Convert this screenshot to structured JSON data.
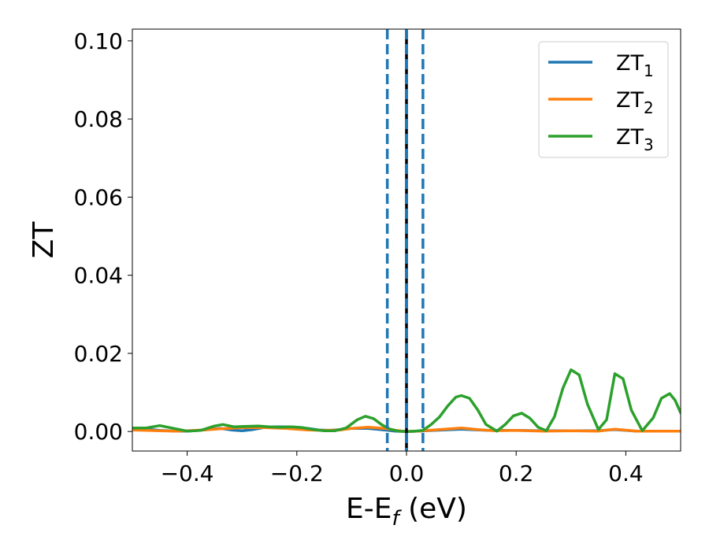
{
  "chart_data": {
    "type": "line",
    "xlabel": "E-E",
    "xlabel_subscript": "f",
    "xlabel_unit": " (eV)",
    "ylabel": "ZT",
    "xlim": [
      -0.5,
      0.5
    ],
    "ylim": [
      -0.005,
      0.103
    ],
    "x_ticks": [
      -0.4,
      -0.2,
      0.0,
      0.2,
      0.4
    ],
    "x_tick_labels": [
      "−0.4",
      "−0.2",
      "0.0",
      "0.2",
      "0.4"
    ],
    "y_ticks": [
      0.0,
      0.02,
      0.04,
      0.06,
      0.08,
      0.1
    ],
    "y_tick_labels": [
      "0.00",
      "0.02",
      "0.04",
      "0.06",
      "0.08",
      "0.10"
    ],
    "grid": false,
    "legend_position": "top-right",
    "vertical_lines": [
      {
        "x": -0.035,
        "style": "dashed",
        "color": "#1f77b4"
      },
      {
        "x": 0.0,
        "style": "solid",
        "color": "#000000"
      },
      {
        "x": 0.0,
        "style": "dashed",
        "color": "#1f77b4"
      },
      {
        "x": 0.03,
        "style": "dashed",
        "color": "#1f77b4"
      }
    ],
    "series": [
      {
        "name": "ZT",
        "name_subscript": "1",
        "color": "#1f77b4",
        "x": [
          -0.5,
          -0.45,
          -0.42,
          -0.4,
          -0.37,
          -0.34,
          -0.32,
          -0.3,
          -0.28,
          -0.26,
          -0.24,
          -0.22,
          -0.2,
          -0.18,
          -0.16,
          -0.14,
          -0.12,
          -0.1,
          -0.07,
          -0.04,
          -0.02,
          0.0,
          0.02,
          0.05,
          0.1,
          0.15,
          0.2,
          0.25,
          0.3,
          0.35,
          0.38,
          0.42,
          0.46,
          0.5
        ],
        "y": [
          0.0009,
          0.0003,
          0.0001,
          0.0001,
          0.0004,
          0.0008,
          0.0004,
          0.0002,
          0.0005,
          0.001,
          0.0012,
          0.0012,
          0.0011,
          0.0008,
          0.0004,
          0.0003,
          0.0005,
          0.0008,
          0.0008,
          0.0004,
          0.0001,
          0.0,
          0.0001,
          0.0003,
          0.0006,
          0.0003,
          0.0003,
          0.0002,
          0.0002,
          0.0002,
          0.0005,
          0.0001,
          0.0001,
          0.0001
        ]
      },
      {
        "name": "ZT",
        "name_subscript": "2",
        "color": "#ff7f0e",
        "x": [
          -0.5,
          -0.45,
          -0.42,
          -0.4,
          -0.37,
          -0.34,
          -0.3,
          -0.26,
          -0.22,
          -0.2,
          -0.18,
          -0.15,
          -0.12,
          -0.1,
          -0.07,
          -0.04,
          -0.02,
          0.0,
          0.02,
          0.05,
          0.08,
          0.1,
          0.13,
          0.16,
          0.2,
          0.25,
          0.3,
          0.35,
          0.38,
          0.42,
          0.46,
          0.5
        ],
        "y": [
          0.0004,
          0.0002,
          0.0001,
          0.0002,
          0.0004,
          0.0007,
          0.001,
          0.001,
          0.0008,
          0.0006,
          0.0004,
          0.0003,
          0.0004,
          0.0008,
          0.0011,
          0.0008,
          0.0003,
          0.0,
          0.0001,
          0.0004,
          0.0007,
          0.0009,
          0.0005,
          0.0002,
          0.0003,
          0.0001,
          0.0002,
          0.0001,
          0.0006,
          0.0001,
          0.0001,
          0.0001
        ]
      },
      {
        "name": "ZT",
        "name_subscript": "3",
        "color": "#2ca02c",
        "x": [
          -0.5,
          -0.475,
          -0.45,
          -0.425,
          -0.4,
          -0.375,
          -0.35,
          -0.335,
          -0.315,
          -0.295,
          -0.27,
          -0.25,
          -0.23,
          -0.21,
          -0.19,
          -0.17,
          -0.15,
          -0.13,
          -0.11,
          -0.09,
          -0.075,
          -0.06,
          -0.045,
          -0.03,
          -0.015,
          0.0,
          0.015,
          0.03,
          0.045,
          0.06,
          0.075,
          0.09,
          0.1,
          0.115,
          0.13,
          0.145,
          0.165,
          0.18,
          0.195,
          0.21,
          0.225,
          0.24,
          0.255,
          0.27,
          0.285,
          0.3,
          0.315,
          0.33,
          0.35,
          0.365,
          0.38,
          0.395,
          0.41,
          0.43,
          0.45,
          0.465,
          0.48,
          0.49,
          0.5
        ],
        "y": [
          0.0009,
          0.0009,
          0.0015,
          0.0008,
          0.0001,
          0.0003,
          0.0014,
          0.0018,
          0.0012,
          0.0013,
          0.0014,
          0.0012,
          0.0011,
          0.0012,
          0.001,
          0.0005,
          0.0002,
          0.0002,
          0.0009,
          0.003,
          0.0039,
          0.0033,
          0.0017,
          0.0006,
          0.0001,
          0.0,
          0.0001,
          0.0003,
          0.0018,
          0.0037,
          0.0065,
          0.0088,
          0.0092,
          0.0085,
          0.0055,
          0.0018,
          0.0001,
          0.0018,
          0.004,
          0.0047,
          0.0034,
          0.0011,
          0.0002,
          0.0038,
          0.011,
          0.0158,
          0.0145,
          0.007,
          0.0005,
          0.003,
          0.0148,
          0.0135,
          0.0055,
          0.0002,
          0.0035,
          0.0085,
          0.0097,
          0.008,
          0.0048
        ]
      }
    ]
  }
}
